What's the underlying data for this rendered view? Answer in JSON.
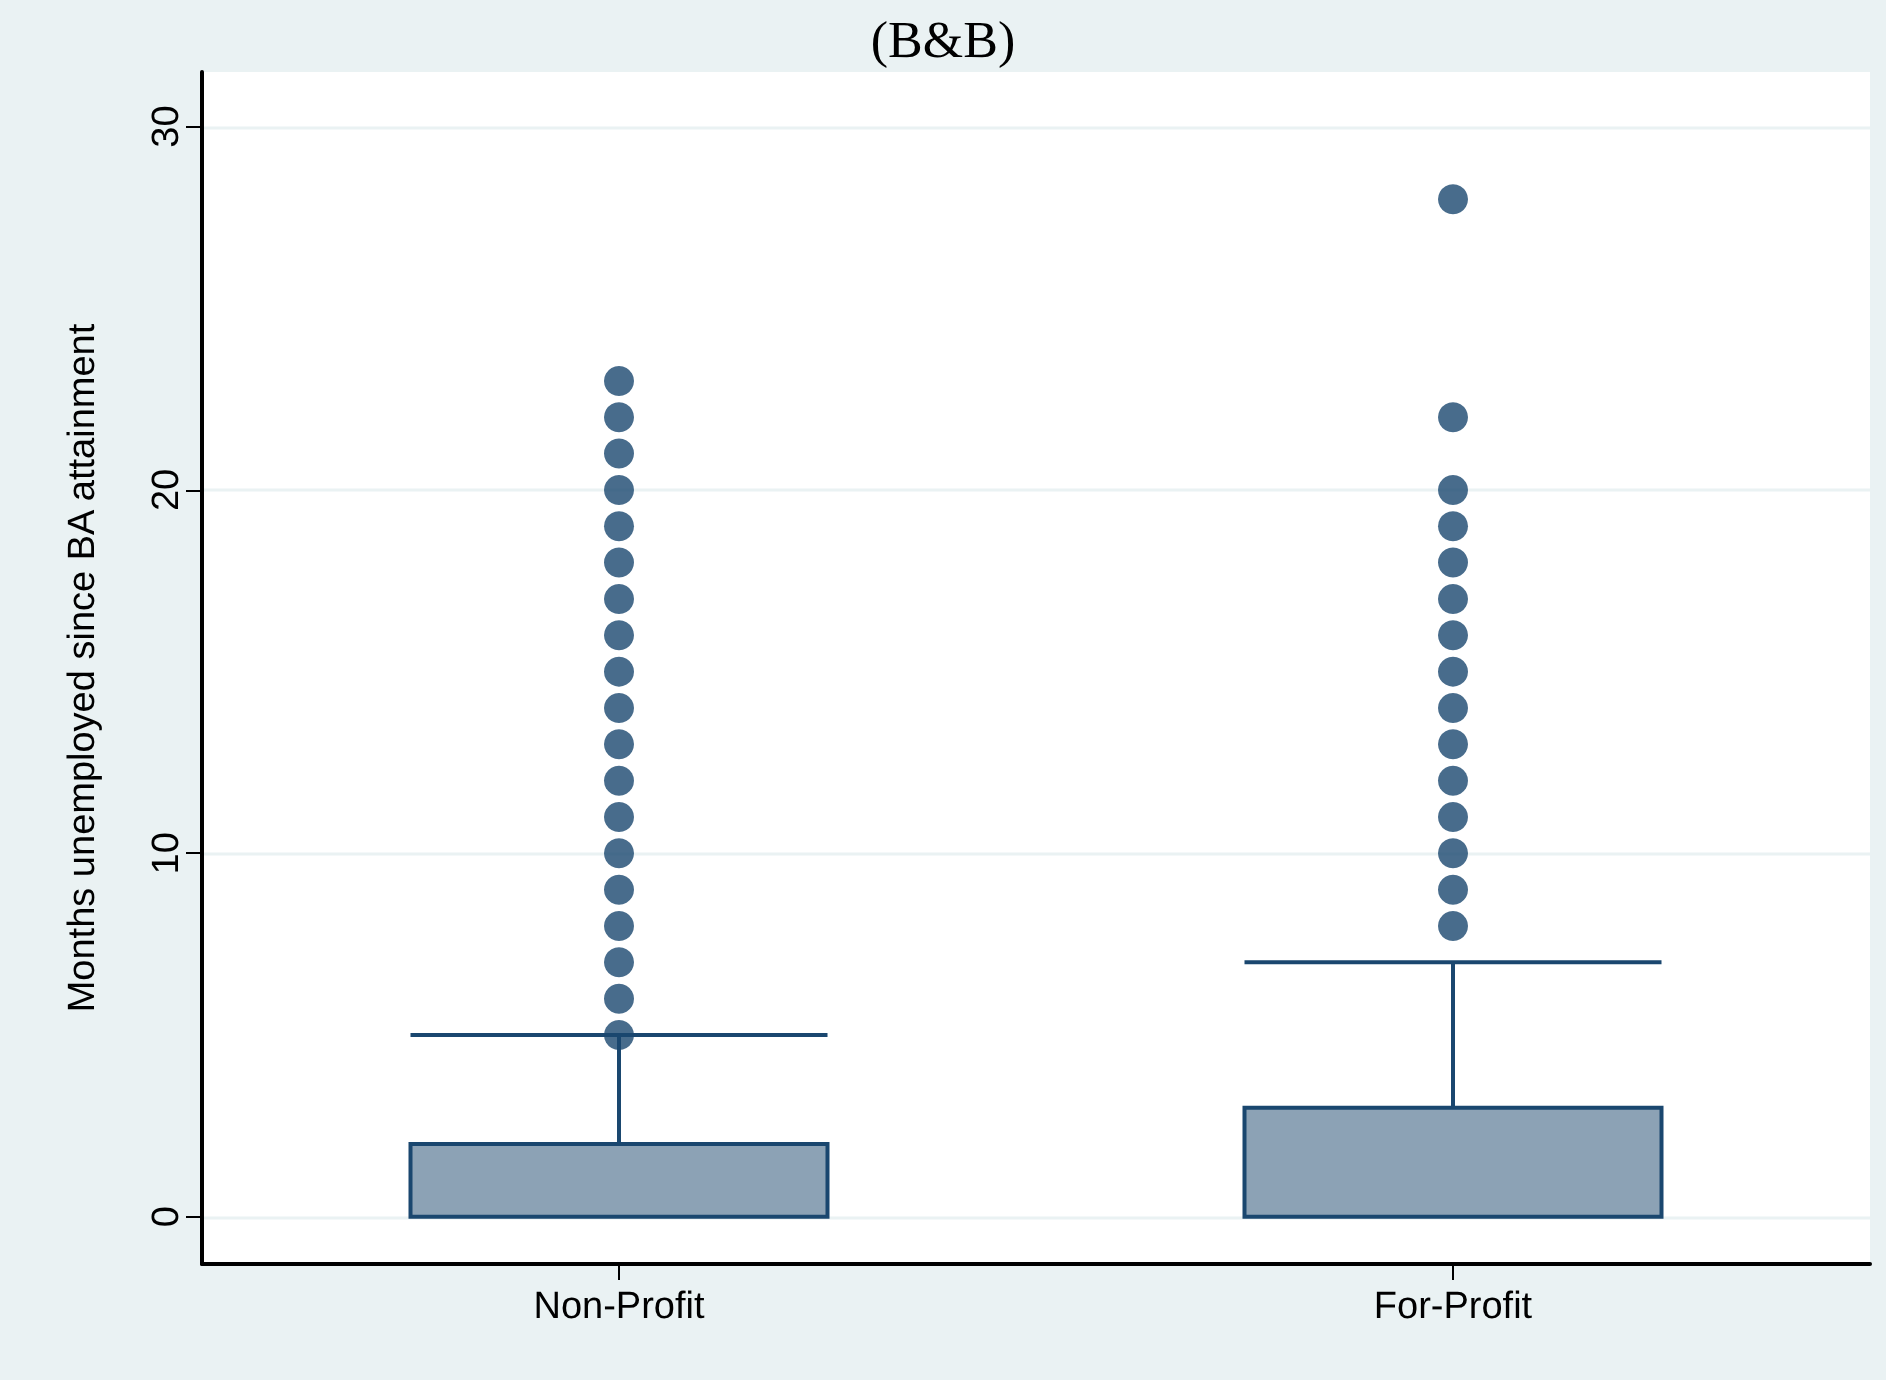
{
  "chart_data": {
    "type": "box",
    "title": "(B&B)",
    "ylabel": "Months unemployed since BA attainment",
    "categories": [
      "Non-Profit",
      "For-Profit"
    ],
    "series": [
      {
        "color": "#8ca2b5",
        "boxes": [
          {
            "low": 0,
            "q1": 0,
            "median": 0,
            "q3": 2,
            "high": 5,
            "outliers": [
              5,
              6,
              7,
              8,
              9,
              10,
              11,
              12,
              13,
              14,
              15,
              16,
              17,
              18,
              19,
              20,
              21,
              22,
              23
            ]
          },
          {
            "low": 0,
            "q1": 0,
            "median": 0,
            "q3": 3,
            "high": 7,
            "outliers": [
              8,
              9,
              10,
              11,
              12,
              13,
              14,
              15,
              16,
              17,
              18,
              19,
              20,
              22,
              28
            ]
          }
        ]
      }
    ],
    "ylim": [
      -1.3,
      31.5
    ],
    "yticks": [
      0,
      10,
      20,
      30
    ],
    "grid": "y",
    "marker": "circle"
  }
}
